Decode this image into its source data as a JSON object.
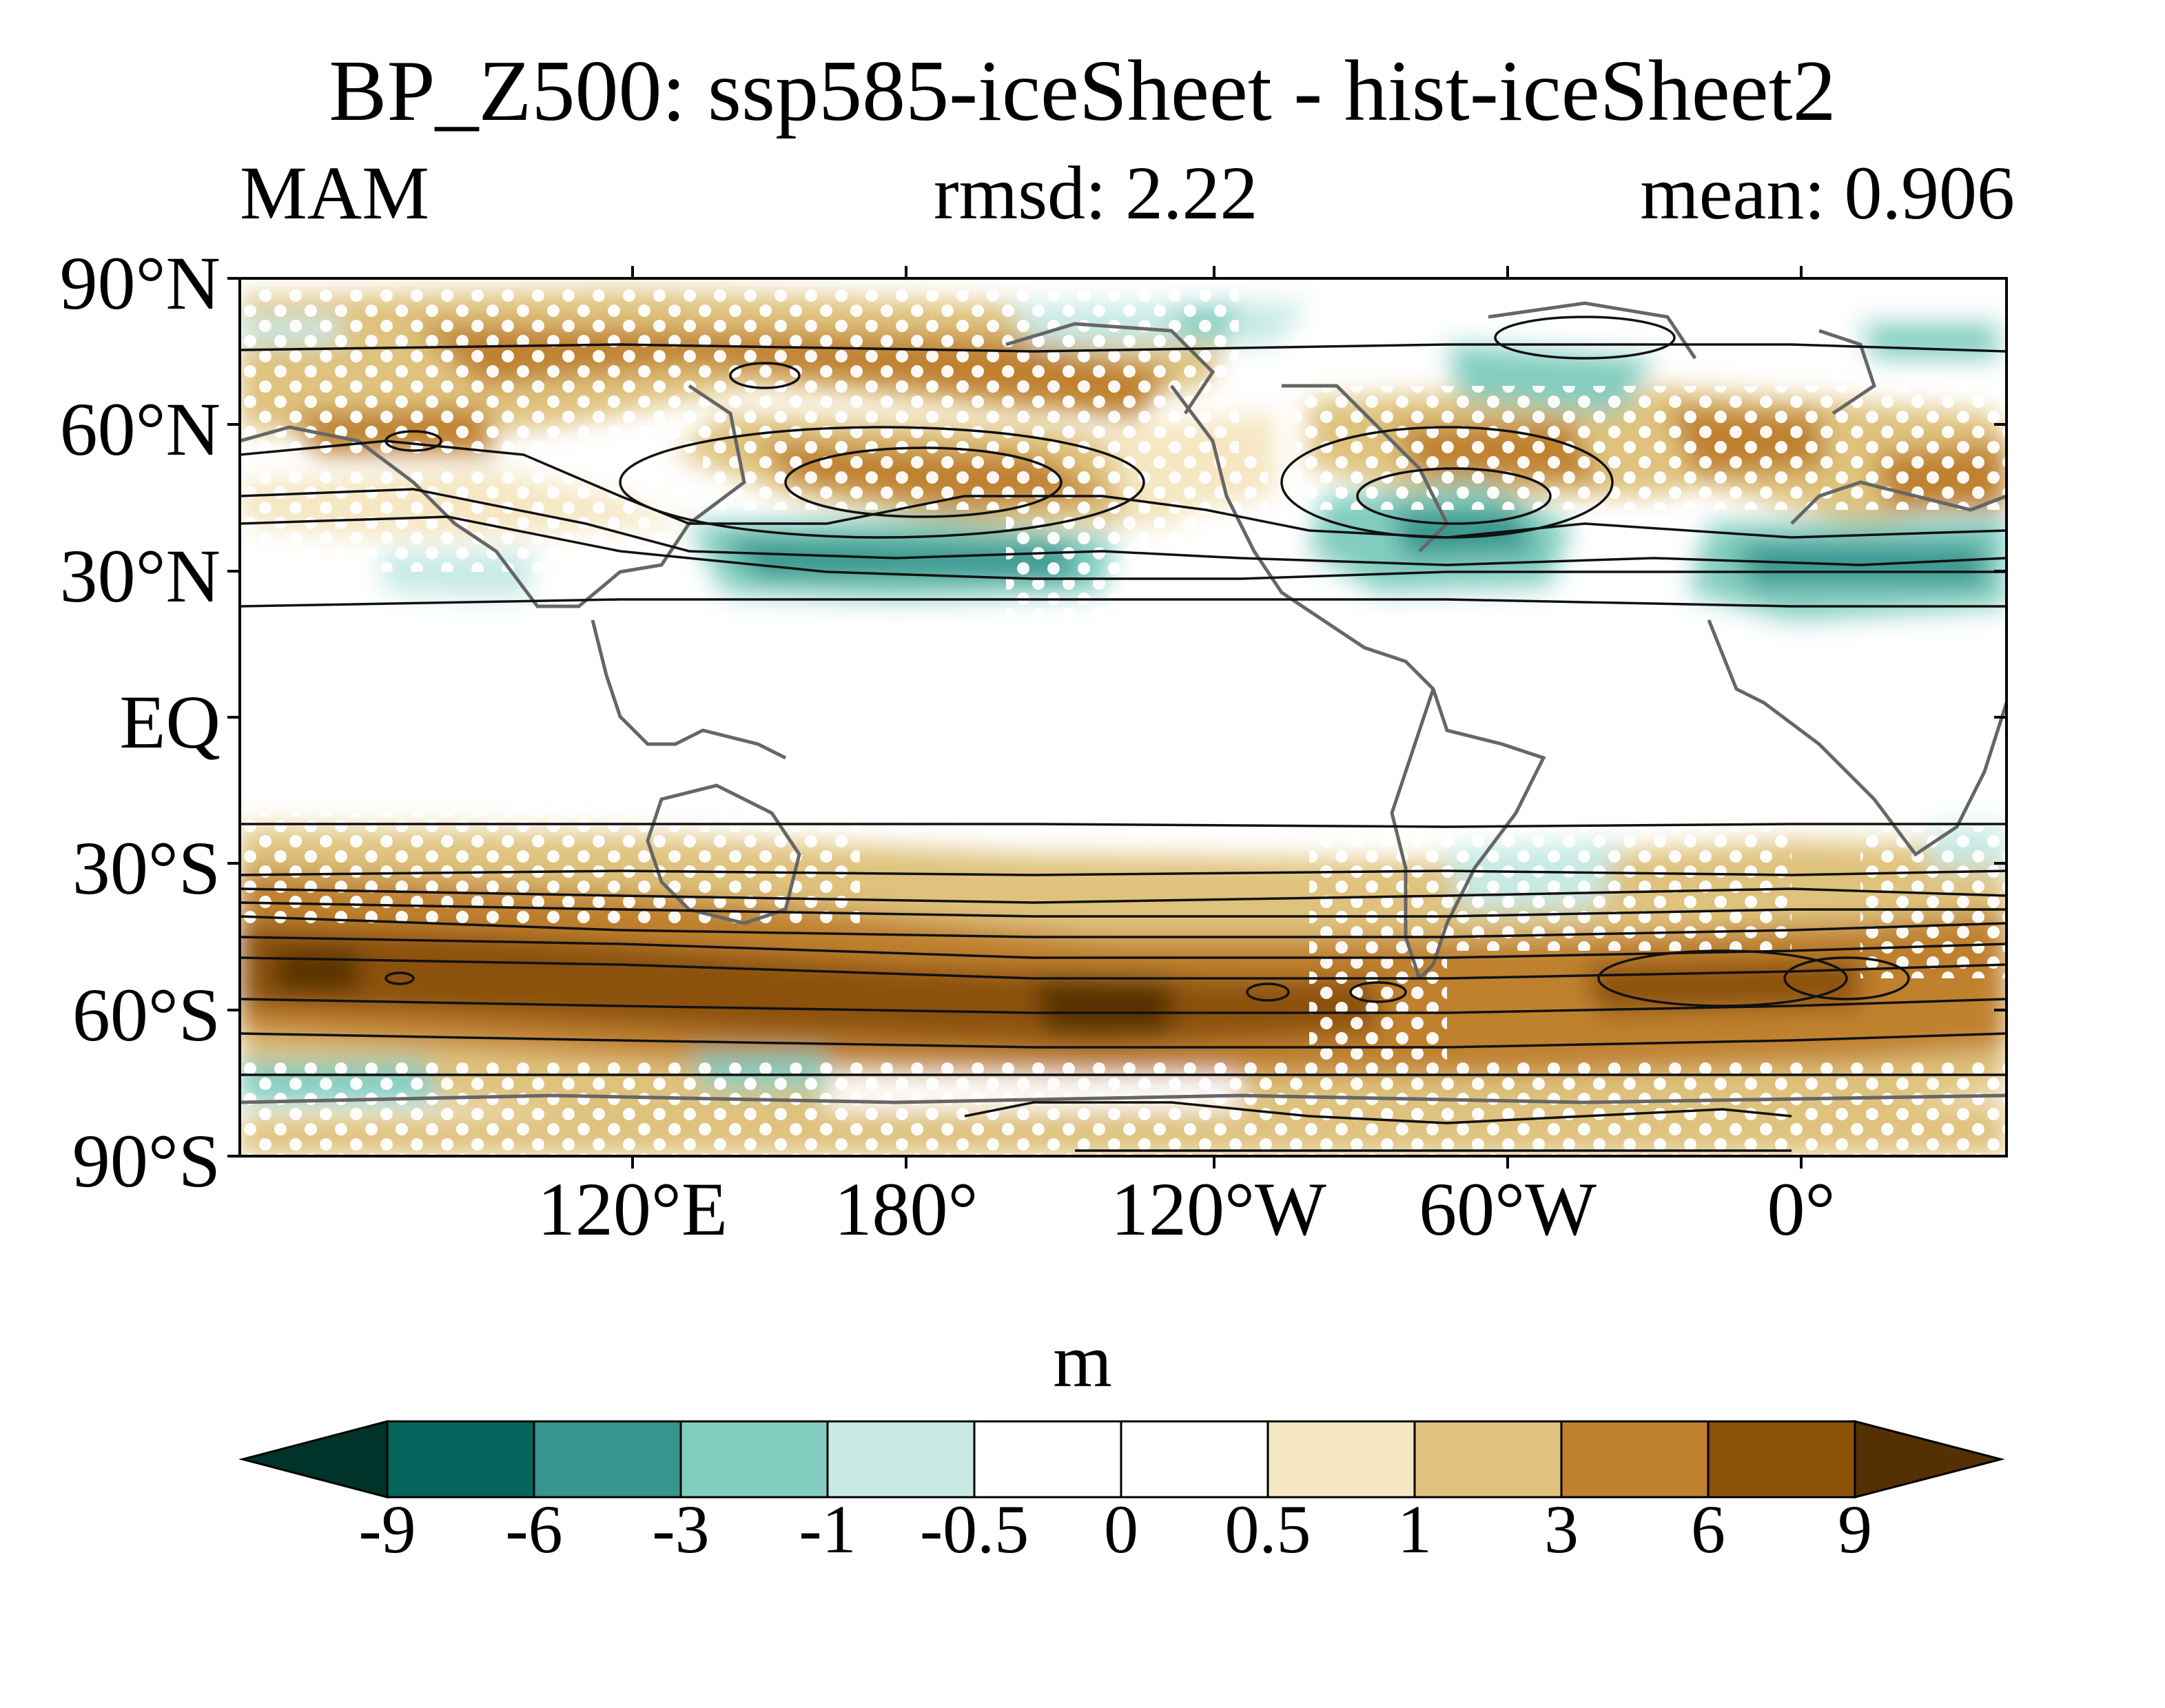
{
  "header": {
    "title": "BP_Z500: ssp585-iceSheet - hist-iceSheet2",
    "season": "MAM",
    "rmsd": "rmsd: 2.22",
    "mean": "mean: 0.906"
  },
  "map": {
    "projection": "cylindrical equidistant",
    "central_longitude": 60,
    "lat_labels": [
      "90°N",
      "60°N",
      "30°N",
      "EQ",
      "30°S",
      "60°S",
      "90°S"
    ],
    "lon_labels": [
      "120°E",
      "180°",
      "120°W",
      "60°W",
      "0°"
    ],
    "stippling": "white dots",
    "contours": "black lines",
    "coastlines": "gray lines"
  },
  "colorbar": {
    "unit": "m",
    "levels": [
      "-9",
      "-6",
      "-3",
      "-1",
      "-0.5",
      "0",
      "0.5",
      "1",
      "3",
      "6",
      "9"
    ],
    "colors": [
      "#00332a",
      "#03655c",
      "#36968e",
      "#82cdc0",
      "#c7eae4",
      "#ffffff",
      "#ffffff",
      "#f5e7c2",
      "#dfc27d",
      "#bf812d",
      "#8c5109",
      "#543005"
    ]
  }
}
